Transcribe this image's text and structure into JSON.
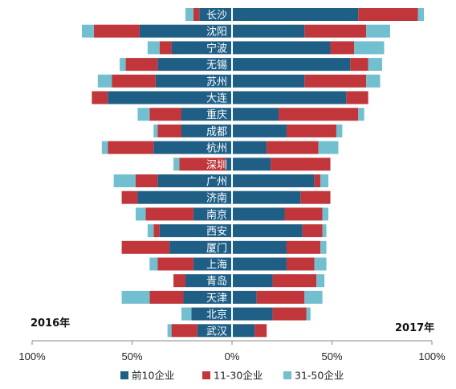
{
  "chart_data": {
    "type": "bar",
    "orientation": "horizontal-diverging",
    "xlim": [
      -100,
      100
    ],
    "x_tick_labels": [
      "100%",
      "50%",
      "0%",
      "50%",
      "100%"
    ],
    "left_label": "2016年",
    "right_label": "2017年",
    "colors": {
      "top10": "#1f5f86",
      "r11_30": "#c0363a",
      "r31_50": "#72bfd0"
    },
    "legend": [
      {
        "key": "top10",
        "label": "前10企业"
      },
      {
        "key": "r11_30",
        "label": "11-30企业"
      },
      {
        "key": "r31_50",
        "label": "31-50企业"
      }
    ],
    "categories": [
      "长沙",
      "沈阳",
      "宁波",
      "无锡",
      "苏州",
      "大连",
      "重庆",
      "成都",
      "杭州",
      "深圳",
      "广州",
      "济南",
      "南京",
      "西安",
      "厦门",
      "上海",
      "青岛",
      "天津",
      "北京",
      "武汉"
    ],
    "series": [
      {
        "key": "top10",
        "name": "前10企业",
        "y2016": [
          16,
          46,
          30,
          37,
          38,
          62,
          25,
          25,
          39,
          3,
          37,
          47,
          19,
          36,
          31,
          19,
          23,
          24,
          20,
          17
        ],
        "y2017": [
          63,
          36,
          49,
          59,
          36,
          57,
          23,
          27,
          17,
          19,
          41,
          34,
          26,
          35,
          27,
          27,
          20,
          12,
          20,
          11
        ]
      },
      {
        "key": "r11_30",
        "name": "11-30企业",
        "y2016": [
          3,
          23,
          6,
          16,
          22,
          8,
          16,
          12,
          23,
          23,
          11,
          8,
          24,
          3,
          24,
          18,
          6,
          17,
          0,
          13
        ],
        "y2017": [
          30,
          31,
          12,
          9,
          31,
          11,
          40,
          25,
          26,
          30,
          3,
          15,
          19,
          10,
          17,
          14,
          22,
          24,
          17,
          6
        ]
      },
      {
        "key": "r31_50",
        "name": "31-50企业",
        "y2016": [
          4,
          6,
          6,
          3,
          7,
          0,
          6,
          2,
          3,
          3,
          11,
          0,
          5,
          3,
          0,
          4,
          0,
          14,
          5,
          2
        ],
        "y2017": [
          3,
          12,
          15,
          7,
          7,
          0,
          3,
          3,
          10,
          0,
          4,
          0,
          3,
          2,
          3,
          6,
          4,
          9,
          2,
          0
        ]
      }
    ]
  }
}
